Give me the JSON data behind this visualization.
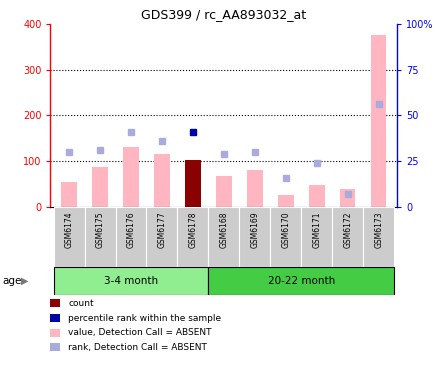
{
  "title": "GDS399 / rc_AA893032_at",
  "samples": [
    "GSM6174",
    "GSM6175",
    "GSM6176",
    "GSM6177",
    "GSM6178",
    "GSM6168",
    "GSM6169",
    "GSM6170",
    "GSM6171",
    "GSM6172",
    "GSM6173"
  ],
  "bar_values_absent": [
    55,
    88,
    130,
    115,
    102,
    68,
    80,
    25,
    48,
    38,
    375
  ],
  "bar_is_count": [
    false,
    false,
    false,
    false,
    true,
    false,
    false,
    false,
    false,
    false,
    false
  ],
  "rank_dots_pct": [
    30,
    31,
    41,
    36,
    41,
    29,
    30,
    16,
    24,
    7,
    56
  ],
  "rank_dot_is_count": [
    false,
    false,
    false,
    false,
    true,
    false,
    false,
    false,
    false,
    false,
    false
  ],
  "ylim_left": [
    0,
    400
  ],
  "ylim_right": [
    0,
    100
  ],
  "yticks_left": [
    0,
    100,
    200,
    300,
    400
  ],
  "yticks_right": [
    0,
    25,
    50,
    75,
    100
  ],
  "yticklabels_right": [
    "0",
    "25",
    "50",
    "75",
    "100%"
  ],
  "hlines": [
    100,
    200,
    300
  ],
  "group1_label": "3-4 month",
  "group2_label": "20-22 month",
  "group1_indices": [
    0,
    1,
    2,
    3,
    4
  ],
  "group2_indices": [
    5,
    6,
    7,
    8,
    9,
    10
  ],
  "color_bar_absent": "#FFB6C1",
  "color_bar_count": "#8B0000",
  "color_dot_absent": "#AAAADD",
  "color_dot_count": "#0000AA",
  "color_group1": "#90EE90",
  "color_group2": "#44CC44",
  "age_label": "age",
  "background_color": "#FFFFFF",
  "tick_area_color": "#CCCCCC",
  "legend_items": [
    {
      "label": "count",
      "color": "#8B0000"
    },
    {
      "label": "percentile rank within the sample",
      "color": "#0000AA"
    },
    {
      "label": "value, Detection Call = ABSENT",
      "color": "#FFB6C1"
    },
    {
      "label": "rank, Detection Call = ABSENT",
      "color": "#AAAADD"
    }
  ]
}
